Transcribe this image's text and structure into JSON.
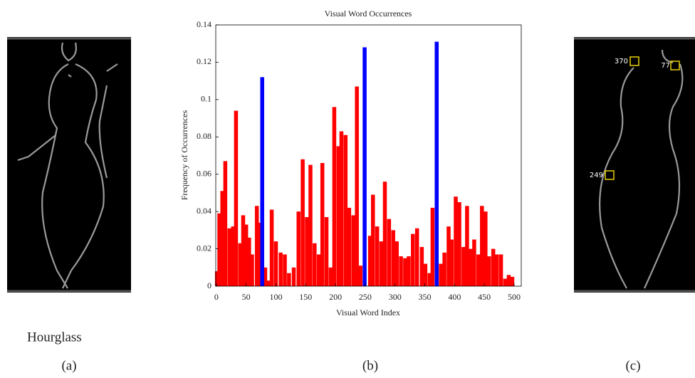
{
  "chart_data": {
    "type": "bar",
    "title": "Visual Word Occurrences",
    "x_label": "Visual Word Index",
    "y_label": "Frequency of Occurrences",
    "xlim": [
      -1,
      512
    ],
    "ylim": [
      0,
      0.14
    ],
    "xticks": [
      0,
      50,
      100,
      150,
      200,
      250,
      300,
      350,
      400,
      450,
      500
    ],
    "yticks": [
      0,
      0.02,
      0.04,
      0.06,
      0.08,
      0.1,
      0.12,
      0.14
    ],
    "series": [
      {
        "color": "#ff0000",
        "x": [
          1,
          5,
          10,
          15,
          22,
          28,
          33,
          40,
          45,
          50,
          55,
          60,
          68,
          73,
          82,
          88,
          93,
          100,
          108,
          115,
          122,
          130,
          138,
          145,
          152,
          158,
          165,
          172,
          178,
          185,
          192,
          198,
          205,
          210,
          217,
          223,
          230,
          236,
          242,
          258,
          263,
          270,
          277,
          283,
          290,
          297,
          303,
          310,
          317,
          323,
          330,
          337,
          345,
          351,
          358,
          363,
          377,
          383,
          390,
          395,
          402,
          408,
          415,
          421,
          427,
          433,
          440,
          446,
          452,
          458,
          465,
          471,
          478,
          485,
          491,
          497
        ],
        "values": [
          0.008,
          0.039,
          0.051,
          0.067,
          0.031,
          0.032,
          0.094,
          0.023,
          0.038,
          0.033,
          0.026,
          0.017,
          0.043,
          0.034,
          0.01,
          0.003,
          0.041,
          0.024,
          0.018,
          0.017,
          0.007,
          0.01,
          0.04,
          0.068,
          0.037,
          0.065,
          0.023,
          0.017,
          0.066,
          0.037,
          0.01,
          0.096,
          0.075,
          0.083,
          0.081,
          0.042,
          0.038,
          0.107,
          0.011,
          0.027,
          0.049,
          0.032,
          0.024,
          0.056,
          0.036,
          0.03,
          0.024,
          0.016,
          0.015,
          0.016,
          0.028,
          0.031,
          0.021,
          0.012,
          0.007,
          0.042,
          0.012,
          0.018,
          0.032,
          0.025,
          0.048,
          0.045,
          0.021,
          0.043,
          0.02,
          0.025,
          0.017,
          0.043,
          0.04,
          0.016,
          0.02,
          0.017,
          0.017,
          0.004,
          0.006,
          0.005
        ]
      },
      {
        "color": "#0000ff",
        "x": [
          77,
          249,
          370
        ],
        "values": [
          0.112,
          0.128,
          0.131
        ]
      }
    ]
  },
  "panels": {
    "a": {
      "caption": "Hourglass",
      "label": "(a)"
    },
    "b": {
      "label": "(b)"
    },
    "c": {
      "label": "(c)",
      "annotations": [
        "370",
        "77",
        "249"
      ]
    }
  }
}
